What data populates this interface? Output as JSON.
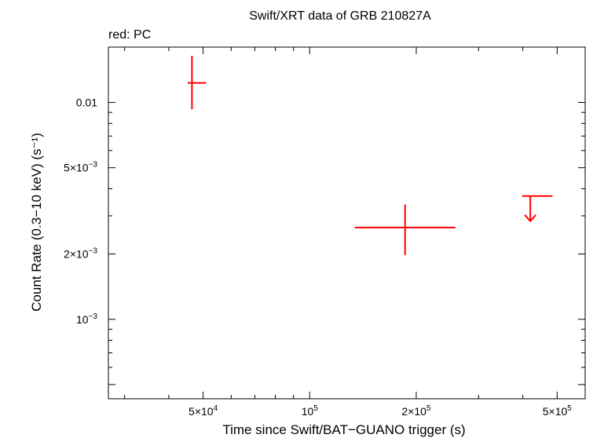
{
  "chart_data": {
    "type": "scatter",
    "title": "Swift/XRT data of GRB 210827A",
    "subtitle": "red: PC",
    "xlabel": "Time since Swift/BAT−GUANO trigger (s)",
    "ylabel": "Count Rate (0.3−10 keV) (s⁻¹)",
    "x_scale": "log",
    "y_scale": "log",
    "xlim": [
      27000,
      600000
    ],
    "ylim": [
      0.00043,
      0.018
    ],
    "x_tick_labels": [
      {
        "value": 50000,
        "mantissa": "5×10",
        "exp": "4"
      },
      {
        "value": 100000,
        "mantissa": "10",
        "exp": "5"
      },
      {
        "value": 200000,
        "mantissa": "2×10",
        "exp": "5"
      },
      {
        "value": 500000,
        "mantissa": "5×10",
        "exp": "5"
      }
    ],
    "y_tick_labels": [
      {
        "value": 0.01,
        "mantissa": "0.01",
        "exp": ""
      },
      {
        "value": 0.005,
        "mantissa": "5×10",
        "exp": "−3"
      },
      {
        "value": 0.002,
        "mantissa": "2×10",
        "exp": "−3"
      },
      {
        "value": 0.001,
        "mantissa": "10",
        "exp": "−3"
      }
    ],
    "grid": false,
    "series": [
      {
        "color": "#ff0000",
        "points": [
          {
            "x": 46500,
            "x_lo": 45200,
            "x_hi": 51000,
            "y": 0.0123,
            "y_lo": 0.0093,
            "y_hi": 0.0164
          },
          {
            "x": 186000,
            "x_lo": 134000,
            "x_hi": 258000,
            "y": 0.00265,
            "y_lo": 0.00198,
            "y_hi": 0.00338
          }
        ],
        "upper_limits": [
          {
            "x": 420000,
            "x_lo": 398000,
            "x_hi": 485000,
            "y": 0.0037
          }
        ]
      }
    ]
  }
}
